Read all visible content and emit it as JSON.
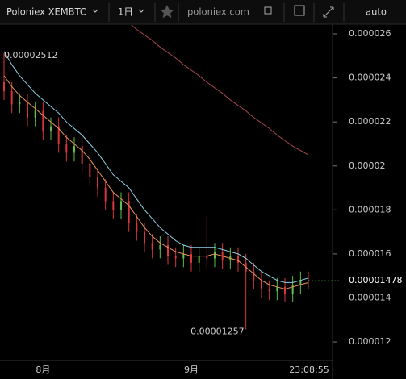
{
  "toolbar": {
    "symbol": "Poloniex XEMBTC",
    "interval": "1日",
    "site": "poloniex.com",
    "scale": "auto"
  },
  "chart_data": {
    "type": "candlestick",
    "categories": [
      null,
      null,
      null,
      null,
      null,
      "8月",
      null,
      null,
      null,
      null,
      null,
      null,
      null,
      null,
      null,
      null,
      null,
      null,
      null,
      null,
      null,
      null,
      null,
      null,
      "9月",
      null,
      null,
      null,
      null,
      null,
      null,
      null,
      null,
      null,
      null,
      null,
      null,
      null,
      null,
      null
    ],
    "open": [
      2.38e-05,
      2.34e-05,
      2.28e-05,
      2.29e-05,
      2.22e-05,
      2.25e-05,
      2.16e-05,
      2.18e-05,
      2.1e-05,
      2.06e-05,
      2.09e-05,
      2.01e-05,
      1.95e-05,
      1.9e-05,
      1.84e-05,
      1.8e-05,
      1.84e-05,
      1.74e-05,
      1.7e-05,
      1.65e-05,
      1.62e-05,
      1.64e-05,
      1.59e-05,
      1.58e-05,
      1.6e-05,
      1.56e-05,
      1.59e-05,
      1.58e-05,
      1.61e-05,
      1.57e-05,
      1.59e-05,
      1.56e-05,
      1.52e-05,
      1.48e-05,
      1.44e-05,
      1.43e-05,
      1.45e-05,
      1.42e-05,
      1.46e-05,
      1.48e-05
    ],
    "high": [
      2.512e-05,
      2.38e-05,
      2.33e-05,
      2.33e-05,
      2.29e-05,
      2.29e-05,
      2.22e-05,
      2.22e-05,
      2.14e-05,
      2.13e-05,
      2.13e-05,
      2.05e-05,
      1.99e-05,
      1.94e-05,
      1.88e-05,
      1.88e-05,
      1.88e-05,
      1.78e-05,
      1.74e-05,
      1.69e-05,
      1.68e-05,
      1.68e-05,
      1.63e-05,
      1.64e-05,
      1.64e-05,
      1.63e-05,
      1.77e-05,
      1.65e-05,
      1.65e-05,
      1.63e-05,
      1.63e-05,
      1.6e-05,
      1.56e-05,
      1.52e-05,
      1.48e-05,
      1.49e-05,
      1.49e-05,
      1.5e-05,
      1.52e-05,
      1.52e-05
    ],
    "low": [
      2.3e-05,
      2.24e-05,
      2.24e-05,
      2.18e-05,
      2.18e-05,
      2.12e-05,
      2.12e-05,
      2.06e-05,
      2.02e-05,
      2.02e-05,
      1.97e-05,
      1.91e-05,
      1.86e-05,
      1.8e-05,
      1.76e-05,
      1.76e-05,
      1.7e-05,
      1.66e-05,
      1.61e-05,
      1.58e-05,
      1.58e-05,
      1.55e-05,
      1.54e-05,
      1.54e-05,
      1.52e-05,
      1.52e-05,
      1.54e-05,
      1.54e-05,
      1.53e-05,
      1.53e-05,
      1.52e-05,
      1.257e-05,
      1.44e-05,
      1.4e-05,
      1.39e-05,
      1.39e-05,
      1.38e-05,
      1.38e-05,
      1.42e-05,
      1.438e-05
    ],
    "close": [
      2.34e-05,
      2.28e-05,
      2.29e-05,
      2.22e-05,
      2.25e-05,
      2.16e-05,
      2.18e-05,
      2.1e-05,
      2.06e-05,
      2.09e-05,
      2.01e-05,
      1.95e-05,
      1.9e-05,
      1.84e-05,
      1.8e-05,
      1.84e-05,
      1.74e-05,
      1.7e-05,
      1.65e-05,
      1.62e-05,
      1.64e-05,
      1.59e-05,
      1.58e-05,
      1.6e-05,
      1.56e-05,
      1.59e-05,
      1.58e-05,
      1.61e-05,
      1.57e-05,
      1.59e-05,
      1.56e-05,
      1.52e-05,
      1.48e-05,
      1.44e-05,
      1.43e-05,
      1.45e-05,
      1.42e-05,
      1.46e-05,
      1.48e-05,
      1.478e-05
    ],
    "up_color": "#5fbf4a",
    "down_color": "#d9363e",
    "series": [
      {
        "color": "#e8955a",
        "values": [
          2.41e-05,
          2.36e-05,
          2.32e-05,
          2.29e-05,
          2.26e-05,
          2.23e-05,
          2.2e-05,
          2.17e-05,
          2.13e-05,
          2.1e-05,
          2.07e-05,
          2.03e-05,
          1.98e-05,
          1.93e-05,
          1.88e-05,
          1.85e-05,
          1.82e-05,
          1.77e-05,
          1.72e-05,
          1.68e-05,
          1.65e-05,
          1.63e-05,
          1.61e-05,
          1.6e-05,
          1.59e-05,
          1.59e-05,
          1.59e-05,
          1.6e-05,
          1.59e-05,
          1.58e-05,
          1.57e-05,
          1.54e-05,
          1.51e-05,
          1.48e-05,
          1.46e-05,
          1.45e-05,
          1.44e-05,
          1.45e-05,
          1.46e-05,
          1.47e-05
        ]
      },
      {
        "color": "#8fd3e6",
        "values": [
          2.52e-05,
          2.46e-05,
          2.41e-05,
          2.37e-05,
          2.33e-05,
          2.3e-05,
          2.27e-05,
          2.24e-05,
          2.2e-05,
          2.17e-05,
          2.14e-05,
          2.1e-05,
          2.06e-05,
          2.01e-05,
          1.96e-05,
          1.93e-05,
          1.9e-05,
          1.85e-05,
          1.8e-05,
          1.76e-05,
          1.72e-05,
          1.69e-05,
          1.66e-05,
          1.64e-05,
          1.63e-05,
          1.63e-05,
          1.63e-05,
          1.63e-05,
          1.62e-05,
          1.61e-05,
          1.6e-05,
          1.58e-05,
          1.55e-05,
          1.52e-05,
          1.5e-05,
          1.48e-05,
          1.47e-05,
          1.47e-05,
          1.48e-05,
          1.49e-05
        ]
      },
      {
        "color": "#a8474f",
        "values": [
          null,
          null,
          null,
          null,
          null,
          null,
          null,
          null,
          null,
          null,
          null,
          null,
          null,
          null,
          null,
          null,
          2.65e-05,
          2.62e-05,
          2.595e-05,
          2.57e-05,
          2.54e-05,
          2.515e-05,
          2.49e-05,
          2.46e-05,
          2.435e-05,
          2.41e-05,
          2.38e-05,
          2.355e-05,
          2.33e-05,
          2.3e-05,
          2.275e-05,
          2.25e-05,
          2.22e-05,
          2.195e-05,
          2.17e-05,
          2.14e-05,
          2.115e-05,
          2.09e-05,
          2.07e-05,
          2.05e-05
        ]
      }
    ],
    "ylim": [
      1.116e-05,
      2.644e-05
    ],
    "yticks": [
      1.2e-05,
      1.4e-05,
      1.6e-05,
      1.8e-05,
      2e-05,
      2.2e-05,
      2.4e-05,
      2.6e-05
    ],
    "countdown": "23:08:55"
  }
}
